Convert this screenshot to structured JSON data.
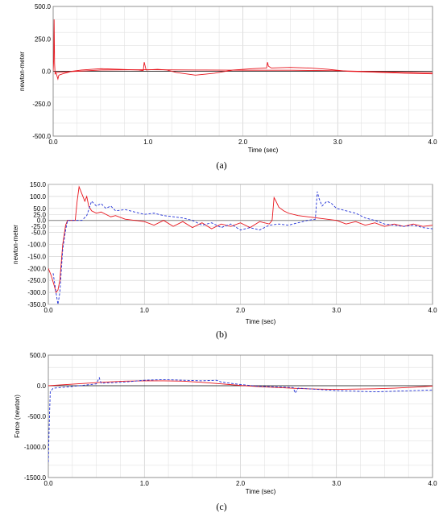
{
  "chart_data": [
    {
      "type": "line",
      "caption": "(a)",
      "xlabel": "Time (sec)",
      "ylabel": "newton-meter",
      "xlim": [
        0,
        4
      ],
      "ylim": [
        -500,
        500
      ],
      "xticks": [
        "0.0",
        "1.0",
        "2.0",
        "3.0",
        "4.0"
      ],
      "yticks": [
        "500.0",
        "250.0",
        "0.0",
        "-250.0",
        "-500.0"
      ],
      "grid": true,
      "colors": {
        "red": "#e8141c",
        "blue": "#1f2fd6"
      },
      "series": [
        {
          "style": "solid",
          "color": "#e8141c",
          "points": [
            [
              0,
              0
            ],
            [
              0.005,
              80
            ],
            [
              0.01,
              400
            ],
            [
              0.015,
              60
            ],
            [
              0.02,
              -20
            ],
            [
              0.03,
              -10
            ],
            [
              0.05,
              -60
            ],
            [
              0.06,
              -30
            ],
            [
              0.1,
              -20
            ],
            [
              0.2,
              0
            ],
            [
              0.3,
              10
            ],
            [
              0.5,
              20
            ],
            [
              0.7,
              15
            ],
            [
              0.9,
              10
            ],
            [
              0.95,
              5
            ],
            [
              0.96,
              70
            ],
            [
              0.97,
              40
            ],
            [
              0.98,
              10
            ],
            [
              1.1,
              15
            ],
            [
              1.2,
              10
            ],
            [
              1.3,
              -10
            ],
            [
              1.5,
              -30
            ],
            [
              1.7,
              -15
            ],
            [
              1.9,
              10
            ],
            [
              2.1,
              20
            ],
            [
              2.25,
              25
            ],
            [
              2.26,
              70
            ],
            [
              2.27,
              40
            ],
            [
              2.3,
              25
            ],
            [
              2.5,
              30
            ],
            [
              2.7,
              25
            ],
            [
              2.9,
              15
            ],
            [
              3.1,
              0
            ],
            [
              3.3,
              -5
            ],
            [
              3.5,
              -10
            ],
            [
              3.7,
              -15
            ],
            [
              3.9,
              -18
            ],
            [
              4.0,
              -20
            ]
          ]
        },
        {
          "style": "solid",
          "color": "#e8141c",
          "points": [
            [
              0.02,
              -10
            ],
            [
              0.5,
              10
            ],
            [
              1.0,
              12
            ],
            [
              1.5,
              10
            ],
            [
              2.0,
              8
            ],
            [
              2.5,
              8
            ],
            [
              3.0,
              4
            ],
            [
              3.5,
              -5
            ],
            [
              4.0,
              -12
            ]
          ]
        }
      ]
    },
    {
      "type": "line",
      "caption": "(b)",
      "xlabel": "Time (sec)",
      "ylabel": "newton-meter",
      "xlim": [
        0,
        4
      ],
      "ylim": [
        -350,
        150
      ],
      "xticks": [
        "0.0",
        "1.0",
        "2.0",
        "3.0",
        "4.0"
      ],
      "yticks": [
        "150.0",
        "100.0",
        "50.0",
        "25.0",
        "0.0",
        "-25.0",
        "-50.0",
        "-100.0",
        "-150.0",
        "-200.0",
        "-250.0",
        "-300.0",
        "-350.0"
      ],
      "ytick_values": [
        150,
        100,
        50,
        25,
        0,
        -25,
        -50,
        -100,
        -150,
        -200,
        -250,
        -300,
        -350
      ],
      "grid": true,
      "series": [
        {
          "style": "solid",
          "color": "#e8141c",
          "points": [
            [
              0,
              -200
            ],
            [
              0.03,
              -230
            ],
            [
              0.06,
              -270
            ],
            [
              0.08,
              -300
            ],
            [
              0.1,
              -290
            ],
            [
              0.12,
              -250
            ],
            [
              0.15,
              -100
            ],
            [
              0.18,
              -20
            ],
            [
              0.2,
              0
            ],
            [
              0.28,
              0
            ],
            [
              0.3,
              80
            ],
            [
              0.32,
              140
            ],
            [
              0.34,
              120
            ],
            [
              0.36,
              100
            ],
            [
              0.38,
              80
            ],
            [
              0.4,
              100
            ],
            [
              0.42,
              60
            ],
            [
              0.45,
              40
            ],
            [
              0.5,
              30
            ],
            [
              0.55,
              35
            ],
            [
              0.6,
              25
            ],
            [
              0.65,
              15
            ],
            [
              0.7,
              20
            ],
            [
              0.8,
              5
            ],
            [
              0.9,
              0
            ],
            [
              1.0,
              -5
            ],
            [
              1.1,
              -20
            ],
            [
              1.2,
              0
            ],
            [
              1.3,
              -25
            ],
            [
              1.4,
              -5
            ],
            [
              1.5,
              -30
            ],
            [
              1.6,
              -10
            ],
            [
              1.7,
              -35
            ],
            [
              1.8,
              -15
            ],
            [
              1.9,
              -25
            ],
            [
              2.0,
              -10
            ],
            [
              2.1,
              -30
            ],
            [
              2.2,
              -5
            ],
            [
              2.3,
              -15
            ],
            [
              2.33,
              0
            ],
            [
              2.35,
              95
            ],
            [
              2.37,
              80
            ],
            [
              2.4,
              55
            ],
            [
              2.45,
              40
            ],
            [
              2.5,
              30
            ],
            [
              2.6,
              20
            ],
            [
              2.7,
              15
            ],
            [
              2.8,
              10
            ],
            [
              2.9,
              5
            ],
            [
              3.0,
              0
            ],
            [
              3.1,
              -15
            ],
            [
              3.2,
              -5
            ],
            [
              3.3,
              -20
            ],
            [
              3.4,
              -10
            ],
            [
              3.5,
              -25
            ],
            [
              3.6,
              -15
            ],
            [
              3.7,
              -25
            ],
            [
              3.8,
              -15
            ],
            [
              3.9,
              -25
            ],
            [
              4.0,
              -20
            ]
          ]
        },
        {
          "style": "dashed",
          "color": "#1f2fd6",
          "points": [
            [
              0.05,
              -220
            ],
            [
              0.08,
              -300
            ],
            [
              0.1,
              -350
            ],
            [
              0.12,
              -300
            ],
            [
              0.15,
              -120
            ],
            [
              0.18,
              -40
            ],
            [
              0.2,
              0
            ],
            [
              0.35,
              0
            ],
            [
              0.4,
              20
            ],
            [
              0.45,
              80
            ],
            [
              0.5,
              60
            ],
            [
              0.55,
              70
            ],
            [
              0.6,
              50
            ],
            [
              0.65,
              60
            ],
            [
              0.7,
              40
            ],
            [
              0.8,
              45
            ],
            [
              0.9,
              35
            ],
            [
              1.0,
              25
            ],
            [
              1.1,
              30
            ],
            [
              1.2,
              20
            ],
            [
              1.3,
              15
            ],
            [
              1.4,
              10
            ],
            [
              1.5,
              0
            ],
            [
              1.6,
              -20
            ],
            [
              1.7,
              -10
            ],
            [
              1.8,
              -30
            ],
            [
              1.9,
              -15
            ],
            [
              2.0,
              -40
            ],
            [
              2.1,
              -30
            ],
            [
              2.2,
              -40
            ],
            [
              2.3,
              -20
            ],
            [
              2.4,
              -15
            ],
            [
              2.5,
              -20
            ],
            [
              2.6,
              -10
            ],
            [
              2.7,
              0
            ],
            [
              2.78,
              5
            ],
            [
              2.8,
              120
            ],
            [
              2.82,
              90
            ],
            [
              2.85,
              60
            ],
            [
              2.9,
              80
            ],
            [
              2.95,
              70
            ],
            [
              3.0,
              50
            ],
            [
              3.1,
              40
            ],
            [
              3.2,
              30
            ],
            [
              3.3,
              10
            ],
            [
              3.4,
              0
            ],
            [
              3.5,
              -15
            ],
            [
              3.6,
              -20
            ],
            [
              3.7,
              -25
            ],
            [
              3.8,
              -20
            ],
            [
              3.9,
              -30
            ],
            [
              4.0,
              -35
            ]
          ]
        }
      ]
    },
    {
      "type": "line",
      "caption": "(c)",
      "xlabel": "Time (sec)",
      "ylabel": "Force (newton)",
      "xlim": [
        0,
        4
      ],
      "ylim": [
        -1500,
        500
      ],
      "xticks": [
        "0.0",
        "1.0",
        "2.0",
        "3.0",
        "4.0"
      ],
      "yticks": [
        "500.0",
        "0.0",
        "-500.0",
        "-1000.0",
        "-1500.0"
      ],
      "grid": true,
      "series": [
        {
          "style": "solid",
          "color": "#e8141c",
          "points": [
            [
              0,
              0
            ],
            [
              0.2,
              20
            ],
            [
              0.4,
              40
            ],
            [
              0.6,
              60
            ],
            [
              0.8,
              75
            ],
            [
              1.0,
              80
            ],
            [
              1.2,
              80
            ],
            [
              1.4,
              75
            ],
            [
              1.6,
              55
            ],
            [
              1.8,
              30
            ],
            [
              2.0,
              5
            ],
            [
              2.2,
              -15
            ],
            [
              2.4,
              -30
            ],
            [
              2.6,
              -45
            ],
            [
              2.8,
              -55
            ],
            [
              3.0,
              -60
            ],
            [
              3.2,
              -55
            ],
            [
              3.4,
              -50
            ],
            [
              3.6,
              -40
            ],
            [
              3.8,
              -25
            ],
            [
              4.0,
              -5
            ]
          ]
        },
        {
          "style": "dashed",
          "color": "#1f2fd6",
          "points": [
            [
              0,
              -1250
            ],
            [
              0.01,
              -600
            ],
            [
              0.02,
              -100
            ],
            [
              0.05,
              -40
            ],
            [
              0.2,
              -20
            ],
            [
              0.5,
              30
            ],
            [
              0.53,
              130
            ],
            [
              0.55,
              40
            ],
            [
              0.8,
              60
            ],
            [
              1.0,
              90
            ],
            [
              1.2,
              100
            ],
            [
              1.4,
              90
            ],
            [
              1.6,
              80
            ],
            [
              1.75,
              90
            ],
            [
              1.8,
              60
            ],
            [
              2.0,
              20
            ],
            [
              2.2,
              -10
            ],
            [
              2.4,
              -20
            ],
            [
              2.55,
              -30
            ],
            [
              2.57,
              -120
            ],
            [
              2.6,
              -40
            ],
            [
              2.8,
              -60
            ],
            [
              3.0,
              -80
            ],
            [
              3.2,
              -90
            ],
            [
              3.4,
              -100
            ],
            [
              3.6,
              -90
            ],
            [
              3.8,
              -80
            ],
            [
              4.0,
              -70
            ]
          ]
        }
      ]
    }
  ]
}
